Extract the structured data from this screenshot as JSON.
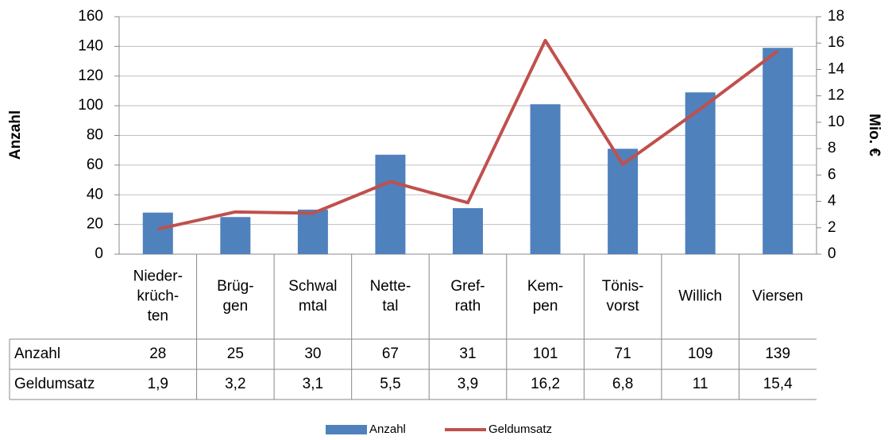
{
  "chart_data": {
    "type": "bar-line",
    "y_label": "Anzahl",
    "y2_label": "Mio. €",
    "categories": [
      [
        "Nieder-",
        "krüch-",
        "ten"
      ],
      [
        "Brüg-",
        "gen"
      ],
      [
        "Schwal",
        "mtal"
      ],
      [
        "Nette-",
        "tal"
      ],
      [
        "Gref-",
        "rath"
      ],
      [
        "Kem-",
        "pen"
      ],
      [
        "Tönis-",
        "vorst"
      ],
      [
        "Willich"
      ],
      [
        "Viersen"
      ]
    ],
    "series": [
      {
        "name": "Anzahl",
        "type": "bar",
        "color": "#4f81bd",
        "values": [
          28,
          25,
          30,
          67,
          31,
          101,
          71,
          109,
          139
        ]
      },
      {
        "name": "Geldumsatz",
        "type": "line",
        "axis": "y2",
        "color": "#c0504d",
        "values": [
          1.9,
          3.2,
          3.1,
          5.5,
          3.9,
          16.2,
          6.8,
          11,
          15.4
        ],
        "value_labels": [
          "1,9",
          "3,2",
          "3,1",
          "5,5",
          "3,9",
          "16,2",
          "6,8",
          "11",
          "15,4"
        ]
      }
    ],
    "ylim": [
      0,
      160
    ],
    "yticks": [
      0,
      20,
      40,
      60,
      80,
      100,
      120,
      140,
      160
    ],
    "y2lim": [
      0,
      18
    ],
    "y2ticks": [
      0,
      2,
      4,
      6,
      8,
      10,
      12,
      14,
      16,
      18
    ],
    "grid": true,
    "legend": "bottom"
  }
}
